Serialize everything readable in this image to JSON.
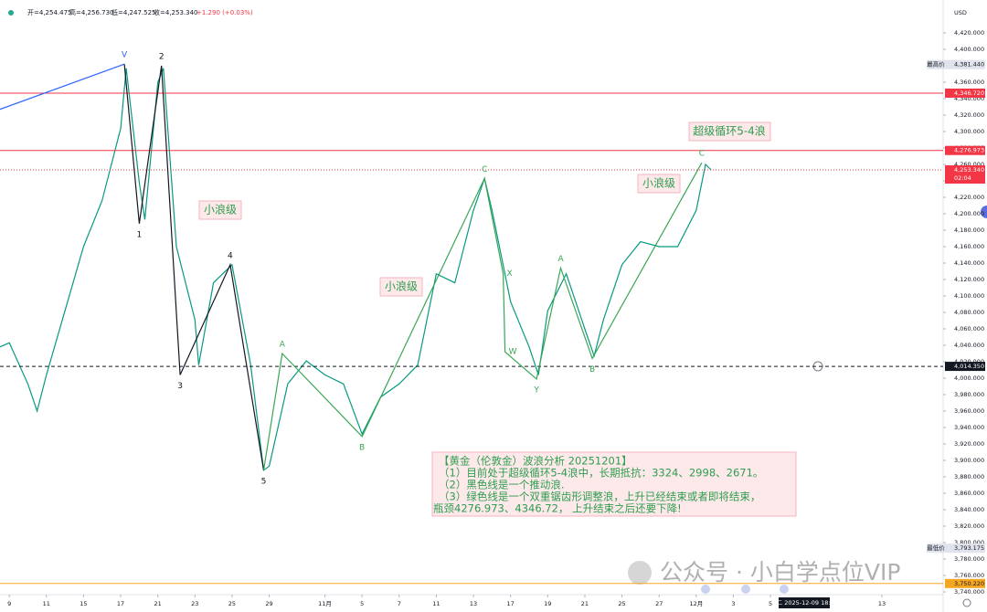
{
  "header": {
    "items": [
      "开=4,254.475",
      "高=4,256.730",
      "低=4,247.525",
      "收=4,253.340",
      "+1.290 (+0.03%)"
    ]
  },
  "chart_data": {
    "type": "line",
    "currency": "USD",
    "color": "#089981",
    "x": [
      -0.5,
      0,
      1,
      1.5,
      2,
      3,
      4,
      5,
      6,
      6.3,
      7,
      7.3,
      8,
      8.3,
      9,
      10,
      10.2,
      11,
      12,
      13,
      13.7,
      14,
      15,
      16,
      17,
      18,
      19,
      20,
      21,
      22,
      23,
      24,
      25,
      25.6,
      26,
      27,
      28,
      28.5,
      29,
      30,
      31,
      31.5,
      32,
      33,
      34,
      35,
      36,
      37,
      37.5,
      37.8
    ],
    "values": [
      4038,
      4043,
      3993,
      3960,
      4004,
      4082,
      4160,
      4216,
      4304,
      4377,
      4238,
      4193,
      4360,
      4377,
      4160,
      4071,
      4016,
      4116,
      4138,
      4016,
      3888,
      3893,
      3993,
      4021,
      4004,
      3993,
      3932,
      3977,
      3993,
      4016,
      4127,
      4116,
      4204,
      4243,
      4204,
      4093,
      4038,
      4004,
      4082,
      4127,
      4060,
      4027,
      4071,
      4138,
      4166,
      4160,
      4160,
      4204,
      4260,
      4253.34
    ],
    "xlim": [
      -0.5,
      50.2
    ],
    "xticks": [
      {
        "value": 0,
        "label": "9"
      },
      {
        "value": 2,
        "label": "11"
      },
      {
        "value": 4,
        "label": "15"
      },
      {
        "value": 6,
        "label": "17"
      },
      {
        "value": 8,
        "label": "21"
      },
      {
        "value": 10,
        "label": "23"
      },
      {
        "value": 12,
        "label": "25"
      },
      {
        "value": 14,
        "label": "29"
      },
      {
        "value": 17,
        "label": "11月"
      },
      {
        "value": 19,
        "label": "5"
      },
      {
        "value": 21,
        "label": "7"
      },
      {
        "value": 23,
        "label": "11"
      },
      {
        "value": 25,
        "label": "13"
      },
      {
        "value": 27,
        "label": "17"
      },
      {
        "value": 29,
        "label": "19"
      },
      {
        "value": 31,
        "label": "21"
      },
      {
        "value": 33,
        "label": "25"
      },
      {
        "value": 35,
        "label": "27"
      },
      {
        "value": 37,
        "label": "12月"
      },
      {
        "value": 39,
        "label": "3"
      },
      {
        "value": 41,
        "label": "5"
      },
      {
        "value": 47,
        "label": "13"
      }
    ],
    "ylim": [
      3740,
      4420
    ],
    "yticks": [
      {
        "value": 3740,
        "label": "3,740.000"
      },
      {
        "value": 3760,
        "label": "3,760.000"
      },
      {
        "value": 3780,
        "label": "3,780.000"
      },
      {
        "value": 3800,
        "label": "3,800.000"
      },
      {
        "value": 3820,
        "label": "3,820.000"
      },
      {
        "value": 3840,
        "label": "3,840.000"
      },
      {
        "value": 3860,
        "label": "3,860.000"
      },
      {
        "value": 3880,
        "label": "3,880.000"
      },
      {
        "value": 3900,
        "label": "3,900.000"
      },
      {
        "value": 3920,
        "label": "3,920.000"
      },
      {
        "value": 3940,
        "label": "3,940.000"
      },
      {
        "value": 3960,
        "label": "3,960.000"
      },
      {
        "value": 3980,
        "label": "3,980.000"
      },
      {
        "value": 4000,
        "label": "4,000.000"
      },
      {
        "value": 4020,
        "label": "4,020.000"
      },
      {
        "value": 4040,
        "label": "4,040.000"
      },
      {
        "value": 4060,
        "label": "4,060.000"
      },
      {
        "value": 4080,
        "label": "4,080.000"
      },
      {
        "value": 4100,
        "label": "4,100.000"
      },
      {
        "value": 4120,
        "label": "4,120.000"
      },
      {
        "value": 4140,
        "label": "4,140.000"
      },
      {
        "value": 4160,
        "label": "4,160.000"
      },
      {
        "value": 4180,
        "label": "4,180.000"
      },
      {
        "value": 4200,
        "label": "4,200.000"
      },
      {
        "value": 4220,
        "label": "4,220.000"
      },
      {
        "value": 4240,
        "label": "4,240.000"
      },
      {
        "value": 4260,
        "label": "4,260.000"
      },
      {
        "value": 4280,
        "label": "4,280.000"
      },
      {
        "value": 4300,
        "label": "4,300.000"
      },
      {
        "value": 4320,
        "label": "4,320.000"
      },
      {
        "value": 4340,
        "label": "4,340.000"
      },
      {
        "value": 4360,
        "label": "4,360.000"
      },
      {
        "value": 4380,
        "label": "4,380.000"
      },
      {
        "value": 4400,
        "label": "4,400.000"
      },
      {
        "value": 4420,
        "label": "4,420.000"
      }
    ],
    "levels": [
      {
        "value": 4381.44,
        "label": "4,381.440",
        "tag": "最高价",
        "color": "#e0e3eb",
        "style": "none"
      },
      {
        "value": 4346.72,
        "label": "4,346.720",
        "color": "#f23645",
        "style": "solid"
      },
      {
        "value": 4276.973,
        "label": "4,276.973",
        "color": "#f23645",
        "style": "solid"
      },
      {
        "value": 4253.34,
        "label": "4,253.340",
        "sub": "02:04",
        "color": "#f23645",
        "style": "dotted"
      },
      {
        "value": 4014.35,
        "label": "4,014.350",
        "color": "#131722",
        "style": "dashed"
      },
      {
        "value": 3793.175,
        "label": "3,793.175",
        "tag": "最低价",
        "color": "#e0e3eb",
        "style": "none"
      },
      {
        "value": 3750.22,
        "label": "3,750.220",
        "color": "#f5a623",
        "style": "solid"
      }
    ],
    "crosshair_time": "周二 2025-12-09 18:30",
    "waves": [
      {
        "color": "#2962ff",
        "points": [
          {
            "label": null,
            "x": -0.5,
            "price": 4327
          },
          {
            "label": "V",
            "x": 6.2,
            "price": 4382
          }
        ]
      },
      {
        "color": "#131722",
        "points": [
          {
            "label": null,
            "x": 6.2,
            "price": 4382
          },
          {
            "label": "1",
            "x": 7.0,
            "price": 4188
          },
          {
            "label": "2",
            "x": 8.2,
            "price": 4380
          },
          {
            "label": "3",
            "x": 9.2,
            "price": 4004
          },
          {
            "label": "4",
            "x": 11.9,
            "price": 4138
          },
          {
            "label": "5",
            "x": 13.7,
            "price": 3888
          }
        ]
      },
      {
        "color": "#3aa655",
        "points": [
          {
            "label": null,
            "x": 13.7,
            "price": 3888
          },
          {
            "label": "A",
            "x": 14.7,
            "price": 4030
          },
          {
            "label": "B",
            "x": 19.0,
            "price": 3929
          },
          {
            "label": "C",
            "x": 25.6,
            "price": 4243
          },
          {
            "label": "X",
            "x": 26.6,
            "price": 4127
          },
          {
            "label": "W",
            "x": 26.7,
            "price": 4032
          },
          {
            "label": "Y",
            "x": 28.4,
            "price": 3999
          },
          {
            "label": "A",
            "x": 29.7,
            "price": 4134
          },
          {
            "label": "B",
            "x": 31.4,
            "price": 4024
          },
          {
            "label": "C",
            "x": 37.3,
            "price": 4262
          }
        ]
      }
    ]
  },
  "annotations": {
    "wave1": "小浪级",
    "wave2": "小浪级",
    "wave3": "小浪级",
    "cycle": "超级循环5-4浪"
  },
  "note": {
    "lines": [
      "【黄金（伦敦金）波浪分析 20251201】",
      "（1）目前处于超级循环5-4浪中，长期抵抗：3324、2998、2671。",
      "（2）黑色线是一个推动浪.",
      "（3）绿色线是一个双重锯齿形调整浪，上升已经结束或者即将结束，",
      "瓶颈4276.973、4346.72， 上升结束之后还要下降!"
    ]
  },
  "watermark": "公众号 · 小白学点位VIP"
}
